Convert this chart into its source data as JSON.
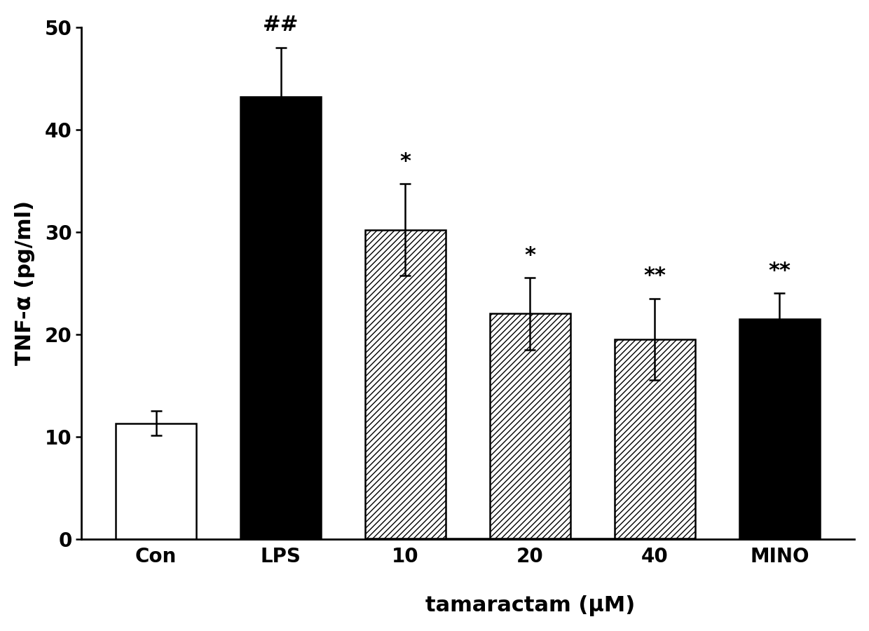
{
  "categories": [
    "Con",
    "LPS",
    "10",
    "20",
    "40",
    "MINO"
  ],
  "values": [
    11.3,
    43.2,
    30.2,
    22.0,
    19.5,
    21.5
  ],
  "errors": [
    1.2,
    4.8,
    4.5,
    3.5,
    4.0,
    2.5
  ],
  "bar_styles": [
    "white",
    "black",
    "hatch",
    "hatch",
    "hatch",
    "black"
  ],
  "hatch_pattern": "////",
  "ylabel": "TNF-α (pg/ml)",
  "xlabel_main": "tamaractam (μM)",
  "ylim": [
    0,
    50
  ],
  "yticks": [
    0,
    10,
    20,
    30,
    40,
    50
  ],
  "annotations": {
    "LPS": "##",
    "10": "*",
    "20": "*",
    "40": "**",
    "MINO": "**"
  },
  "background_color": "#ffffff",
  "bar_edge_color": "#000000",
  "bar_width": 0.65,
  "figsize": [
    12.4,
    9.0
  ],
  "dpi": 100,
  "label_fontsize": 22,
  "tick_fontsize": 20,
  "annot_fontsize": 22
}
